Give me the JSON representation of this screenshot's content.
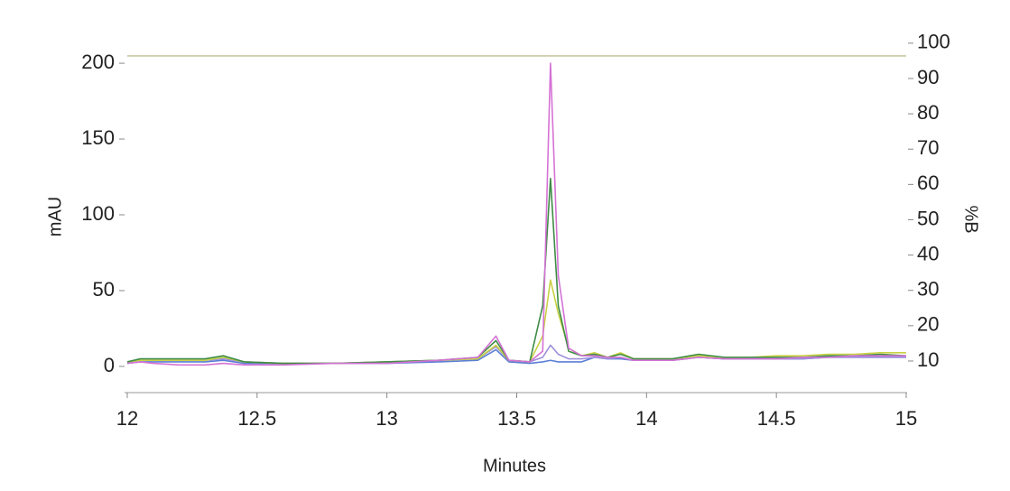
{
  "chart_data": {
    "type": "line",
    "x_label": "Minutes",
    "y_label": "mAU",
    "y2_label": "%B",
    "x": [
      12,
      12.05,
      12.1,
      12.2,
      12.3,
      12.37,
      12.45,
      12.6,
      12.8,
      13.0,
      13.2,
      13.35,
      13.42,
      13.47,
      13.55,
      13.6,
      13.63,
      13.66,
      13.7,
      13.75,
      13.8,
      13.85,
      13.9,
      13.95,
      14.0,
      14.1,
      14.2,
      14.3,
      14.4,
      14.5,
      14.6,
      14.7,
      14.8,
      14.9,
      15.0
    ],
    "series": [
      {
        "color": "#c9c9a3",
        "axis": "y2",
        "values": [
          96.4,
          96.4,
          96.4,
          96.4,
          96.4,
          96.4,
          96.4,
          96.4,
          96.4,
          96.4,
          96.4,
          96.4,
          96.4,
          96.4,
          96.4,
          96.4,
          96.4,
          96.4,
          96.4,
          96.4,
          96.4,
          96.4,
          96.4,
          96.4,
          96.4,
          96.4,
          96.4,
          96.4,
          96.4,
          96.4,
          96.4,
          96.4,
          96.4,
          96.4,
          96.4
        ]
      },
      {
        "color": "#5b7fd6",
        "values": [
          2,
          3,
          3,
          3,
          3,
          4,
          2,
          2,
          2,
          2,
          3,
          4,
          11,
          3,
          2,
          3,
          4,
          3,
          3,
          3,
          6,
          5,
          5,
          4,
          4,
          4,
          6,
          5,
          5,
          5,
          5,
          6,
          6,
          6,
          6
        ]
      },
      {
        "color": "#9d8fdb",
        "values": [
          3,
          4,
          4,
          4,
          4,
          5,
          3,
          2,
          2,
          3,
          4,
          5,
          13,
          4,
          3,
          6,
          14,
          8,
          5,
          5,
          6,
          5,
          6,
          4,
          4,
          4,
          6,
          5,
          5,
          5,
          5,
          6,
          6,
          6,
          6
        ]
      },
      {
        "color": "#c9d145",
        "values": [
          3,
          4,
          4,
          4,
          4,
          6,
          3,
          2,
          2,
          3,
          4,
          5,
          14,
          4,
          3,
          20,
          57,
          35,
          12,
          7,
          9,
          6,
          9,
          5,
          5,
          5,
          7,
          6,
          6,
          7,
          7,
          8,
          8,
          9,
          9
        ]
      },
      {
        "color": "#3e8c46",
        "values": [
          3,
          5,
          5,
          5,
          5,
          7,
          3,
          2,
          2,
          3,
          4,
          6,
          17,
          4,
          3,
          40,
          124,
          40,
          10,
          7,
          8,
          6,
          8,
          5,
          5,
          5,
          8,
          6,
          6,
          6,
          6,
          7,
          7,
          8,
          7
        ]
      },
      {
        "color": "#d572d5",
        "values": [
          2,
          3,
          2,
          1,
          1,
          2,
          1,
          1,
          2,
          2,
          4,
          6,
          20,
          4,
          3,
          10,
          200,
          60,
          12,
          7,
          7,
          6,
          6,
          4,
          4,
          4,
          6,
          5,
          5,
          5,
          6,
          6,
          7,
          7,
          7
        ]
      }
    ],
    "xlim": [
      12,
      15
    ],
    "xticks": [
      12,
      12.5,
      13,
      13.5,
      14,
      14.5,
      15
    ],
    "ylim": [
      -17.3,
      217.9
    ],
    "yticks": [
      0,
      50,
      100,
      150,
      200
    ],
    "y2lim": [
      1.05,
      102.0
    ],
    "y2ticks": [
      10,
      20,
      30,
      40,
      50,
      60,
      70,
      80,
      90,
      100
    ],
    "grid": false
  }
}
